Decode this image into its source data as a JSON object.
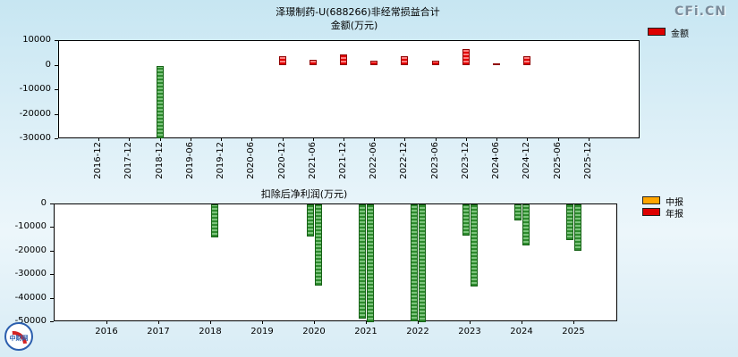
{
  "site": {
    "watermark": "CFi.CN",
    "badge_text": "中财网"
  },
  "chart_data": [
    {
      "type": "bar",
      "title": "泽璟制药-U(688266)非经常损益合计",
      "subtitle": "金额(万元)",
      "legend": [
        {
          "label": "金额",
          "color": "#dd0000"
        }
      ],
      "categories": [
        "2016-12",
        "2017-12",
        "2018-12",
        "2019-06",
        "2019-12",
        "2020-06",
        "2020-12",
        "2021-06",
        "2021-12",
        "2022-06",
        "2022-12",
        "2023-06",
        "2023-12",
        "2024-06",
        "2024-12",
        "2025-06",
        "2025-12"
      ],
      "values": [
        null,
        null,
        -29500,
        null,
        null,
        null,
        3800,
        2400,
        4600,
        1900,
        3900,
        1900,
        6800,
        800,
        3700,
        null,
        null
      ],
      "ylim": [
        -30000,
        10000
      ],
      "yticks": [
        10000,
        0,
        -10000,
        -20000,
        -30000
      ],
      "positive_color": "#dd0000",
      "negative_color": "#2e8b2e",
      "x_tick_rotation": 90,
      "grid": false,
      "legend_position": "outside-right-top"
    },
    {
      "type": "bar",
      "title": "扣除后净利润(万元)",
      "legend": [
        {
          "label": "中报",
          "color": "#ffa500"
        },
        {
          "label": "年报",
          "color": "#dd0000"
        }
      ],
      "categories": [
        "2016",
        "2017",
        "2018",
        "2019",
        "2020",
        "2021",
        "2022",
        "2023",
        "2024",
        "2025"
      ],
      "series": [
        {
          "name": "中报",
          "color": "#ffa500",
          "values": [
            null,
            null,
            null,
            null,
            -13700,
            -48500,
            -49500,
            -13200,
            -7000,
            -15300
          ]
        },
        {
          "name": "年报",
          "color": "#dd0000",
          "values": [
            null,
            null,
            -14000,
            null,
            -34600,
            -50000,
            -50000,
            -34800,
            -17500,
            -19800
          ]
        }
      ],
      "ylim": [
        -50000,
        0
      ],
      "yticks": [
        0,
        -10000,
        -20000,
        -30000,
        -40000,
        -50000
      ],
      "negative_color": "#2e8b2e",
      "x_tick_rotation": 0,
      "grid": false,
      "legend_position": "outside-right-top"
    }
  ]
}
